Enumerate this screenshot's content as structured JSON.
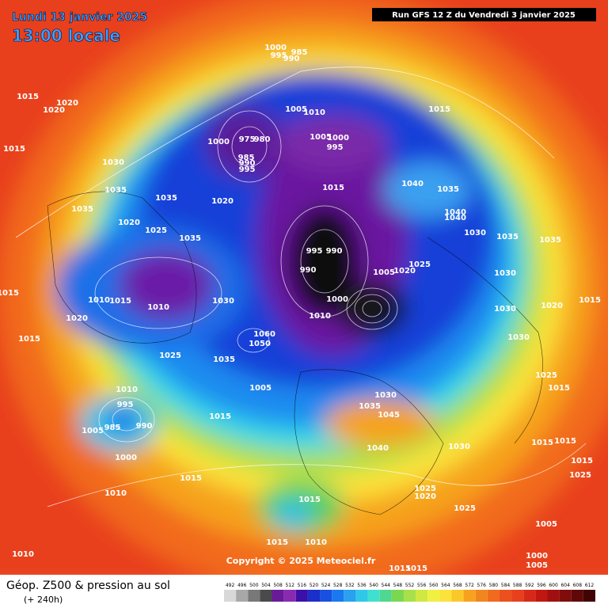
{
  "header": {
    "date": "Lundi 13 janvier 2025",
    "time": "13:00 locale",
    "run": "Run GFS 12 Z du Vendredi 3 janvier 2025"
  },
  "copyright": "Copyright © 2025 Meteociel.fr",
  "footer": {
    "title": "Géop. Z500 & pression au sol",
    "lead": "(+ 240h)"
  },
  "scale": {
    "ticks": [
      492,
      496,
      500,
      504,
      508,
      512,
      516,
      520,
      524,
      528,
      532,
      536,
      540,
      544,
      548,
      552,
      556,
      560,
      564,
      568,
      572,
      576,
      580,
      584,
      588,
      592,
      596,
      600,
      604,
      608,
      612
    ]
  },
  "isobar_labels": [
    "1015",
    "1020",
    "1020",
    "1015",
    "1030",
    "1035",
    "1035",
    "1035",
    "1020",
    "1025",
    "1035",
    "1020",
    "1000",
    "995",
    "985",
    "990",
    "1005",
    "1010",
    "1000",
    "975",
    "980",
    "985",
    "990",
    "995",
    "1005",
    "1000",
    "995",
    "1015",
    "1015",
    "1040",
    "1035",
    "1040",
    "1040",
    "1030",
    "1035",
    "1035",
    "995",
    "990",
    "990",
    "1025",
    "1020",
    "1005",
    "1030",
    "1010",
    "1015",
    "1010",
    "1030",
    "1000",
    "1010",
    "1015",
    "1020",
    "1015",
    "1060",
    "1050",
    "1035",
    "1030",
    "1020",
    "1015",
    "1030",
    "1025",
    "1005",
    "1030",
    "1035",
    "1045",
    "1015",
    "1010",
    "995",
    "1005",
    "985",
    "990",
    "1000",
    "1040",
    "1030",
    "1025",
    "1015",
    "1015",
    "1015",
    "1015",
    "1025",
    "1025",
    "1020",
    "1025",
    "1015",
    "1015",
    "1010",
    "1015",
    "1010",
    "1010",
    "1005",
    "1000",
    "1005",
    "1015",
    "1015"
  ]
}
